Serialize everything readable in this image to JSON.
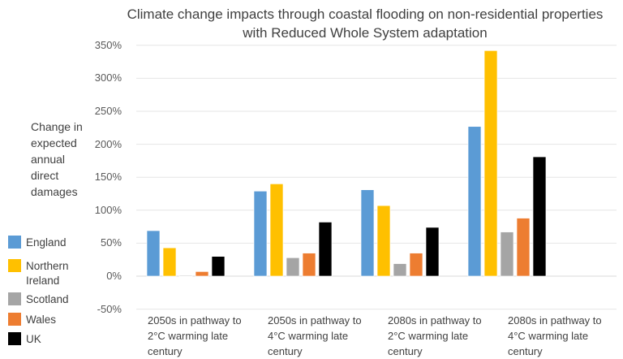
{
  "chart_data": {
    "type": "bar",
    "title": "Climate change impacts through coastal flooding on non-residential properties with Reduced Whole System adaptation",
    "ylabel": "Change in expected annual direct damages",
    "xlabel": "",
    "ylim": [
      -50,
      350
    ],
    "yticks": [
      "350%",
      "300%",
      "250%",
      "200%",
      "150%",
      "100%",
      "50%",
      "0%",
      "-50%"
    ],
    "grid": true,
    "legend_position": "left",
    "categories": [
      "2050s in pathway to 2°C warming late century",
      "2050s in pathway to 4°C warming late century",
      "2080s in pathway to 2°C warming late century",
      "2080s in pathway to 4°C warming late century"
    ],
    "series": [
      {
        "name": "England",
        "color": "#5B9BD5",
        "values": [
          69,
          129,
          131,
          227
        ]
      },
      {
        "name": "Northern Ireland",
        "color": "#FFC000",
        "values": [
          43,
          140,
          107,
          342
        ]
      },
      {
        "name": "Scotland",
        "color": "#A5A5A5",
        "values": [
          1,
          28,
          19,
          67
        ]
      },
      {
        "name": "Wales",
        "color": "#ED7D31",
        "values": [
          7,
          35,
          35,
          88
        ]
      },
      {
        "name": "UK",
        "color": "#000000",
        "values": [
          30,
          82,
          74,
          181
        ]
      }
    ]
  }
}
